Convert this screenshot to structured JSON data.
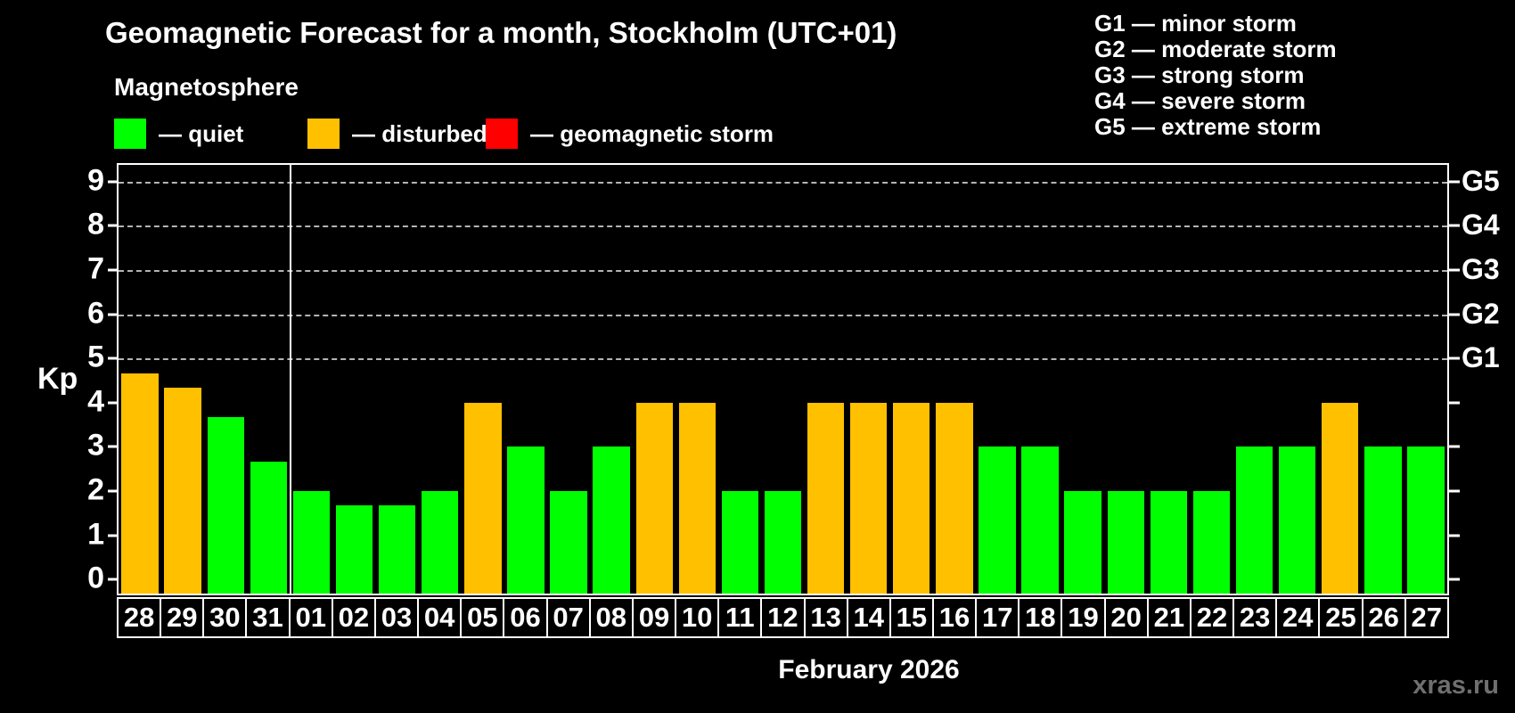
{
  "chart_data": {
    "type": "bar",
    "title": "Geomagnetic Forecast for a month, Stockholm (UTC+01)",
    "subtitle": "Magnetosphere",
    "ylabel": "Kp",
    "xlabel": "February 2026",
    "ylim": [
      0,
      9
    ],
    "y_ticks": [
      0,
      1,
      2,
      3,
      4,
      5,
      6,
      7,
      8,
      9
    ],
    "grid": "horizontal dashed gray lines at Kp 5-9 only (G-storm levels)",
    "background_color": "#000000",
    "categories": [
      "28",
      "29",
      "30",
      "31",
      "01",
      "02",
      "03",
      "04",
      "05",
      "06",
      "07",
      "08",
      "09",
      "10",
      "11",
      "12",
      "13",
      "14",
      "15",
      "16",
      "17",
      "18",
      "19",
      "20",
      "21",
      "22",
      "23",
      "24",
      "25",
      "26",
      "27"
    ],
    "values": [
      4.67,
      4.33,
      3.67,
      2.67,
      2,
      1.67,
      1.67,
      2,
      4,
      3,
      2,
      3,
      4,
      4,
      2,
      2,
      4,
      4,
      4,
      4,
      3,
      3,
      2,
      2,
      2,
      2,
      3,
      3,
      4,
      3,
      3
    ],
    "statuses": [
      "disturbed",
      "disturbed",
      "quiet",
      "quiet",
      "quiet",
      "quiet",
      "quiet",
      "quiet",
      "disturbed",
      "quiet",
      "quiet",
      "quiet",
      "disturbed",
      "disturbed",
      "quiet",
      "quiet",
      "disturbed",
      "disturbed",
      "disturbed",
      "disturbed",
      "quiet",
      "quiet",
      "quiet",
      "quiet",
      "quiet",
      "quiet",
      "quiet",
      "quiet",
      "disturbed",
      "quiet",
      "quiet"
    ],
    "status_colors": {
      "quiet": "#00ff00",
      "disturbed": "#ffc000",
      "storm": "#ff0000"
    },
    "right_axis_labels": [
      {
        "kp": 5,
        "label": "G1"
      },
      {
        "kp": 6,
        "label": "G2"
      },
      {
        "kp": 7,
        "label": "G3"
      },
      {
        "kp": 8,
        "label": "G4"
      },
      {
        "kp": 9,
        "label": "G5"
      }
    ],
    "month_separator_after_index": 3,
    "legend_position": "top-left"
  },
  "legend": {
    "items": [
      {
        "name": "quiet",
        "label": "— quiet",
        "color": "#00ff00"
      },
      {
        "name": "disturbed",
        "label": "— disturbed",
        "color": "#ffc000"
      },
      {
        "name": "geomagnetic-storm",
        "label": "— geomagnetic storm",
        "color": "#ff0000"
      }
    ]
  },
  "g_scale_legend": {
    "lines": [
      "G1 — minor storm",
      "G2 — moderate storm",
      "G3 — strong storm",
      "G4 — severe storm",
      "G5 — extreme storm"
    ]
  },
  "footer": {
    "watermark": "xras.ru"
  }
}
